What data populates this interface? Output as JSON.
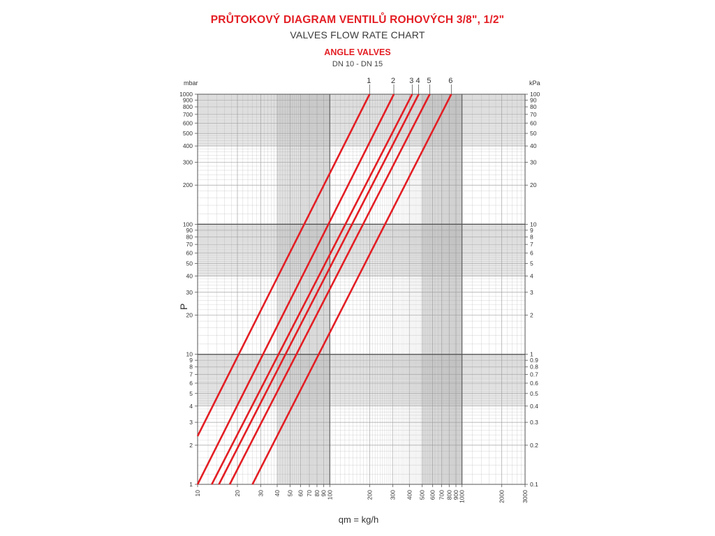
{
  "header": {
    "title": "PRŮTOKOVÝ DIAGRAM VENTILŮ ROHOVÝCH 3/8\", 1/2\"",
    "subtitle": "VALVES FLOW RATE CHART",
    "valve_type": "ANGLE VALVES",
    "dn_range": "DN 10 - DN 15"
  },
  "chart_data": {
    "type": "line",
    "x_scale": "log",
    "y_scale": "log",
    "xlabel": "qm = kg/h",
    "ylabel": "P",
    "y_left_unit": "mbar",
    "y_right_unit": "kPa",
    "xlim": [
      10,
      3000
    ],
    "ylim": [
      1,
      1000
    ],
    "grid": true,
    "x_ticks": [
      "10",
      "20",
      "30",
      "40",
      "50",
      "60",
      "70",
      "80",
      "90",
      "100",
      "200",
      "300",
      "400",
      "500",
      "600",
      "700",
      "800",
      "900",
      "1000",
      "2000",
      "3000"
    ],
    "y_ticks_left": [
      "1",
      "2",
      "3",
      "4",
      "5",
      "6",
      "7",
      "8",
      "9",
      "10",
      "20",
      "30",
      "40",
      "50",
      "60",
      "70",
      "80",
      "90",
      "100",
      "200",
      "300",
      "400",
      "500",
      "600",
      "700",
      "800",
      "900",
      "1000"
    ],
    "y_ticks_right": [
      "0.1",
      "0.2",
      "0.3",
      "0.4",
      "0.5",
      "0.6",
      "0.7",
      "0.8",
      "0.9",
      "1",
      "2",
      "3",
      "4",
      "5",
      "6",
      "7",
      "8",
      "9",
      "10",
      "20",
      "30",
      "40",
      "50",
      "60",
      "70",
      "80",
      "90",
      "100"
    ],
    "series": [
      {
        "name": "1",
        "x": [
          10,
          200
        ],
        "y": [
          2.35,
          1000
        ]
      },
      {
        "name": "2",
        "x": [
          10,
          305
        ],
        "y": [
          1,
          1000
        ]
      },
      {
        "name": "3",
        "x": [
          12.8,
          420
        ],
        "y": [
          1,
          1000
        ]
      },
      {
        "name": "4",
        "x": [
          14.5,
          470
        ],
        "y": [
          1,
          1000
        ]
      },
      {
        "name": "5",
        "x": [
          17.5,
          570
        ],
        "y": [
          1,
          1000
        ]
      },
      {
        "name": "6",
        "x": [
          26,
          830
        ],
        "y": [
          1,
          1000
        ]
      }
    ],
    "colors": {
      "line": "#e31e24",
      "grid": "#9a9a9a",
      "band": "#c8c8c8",
      "text": "#333333"
    }
  }
}
